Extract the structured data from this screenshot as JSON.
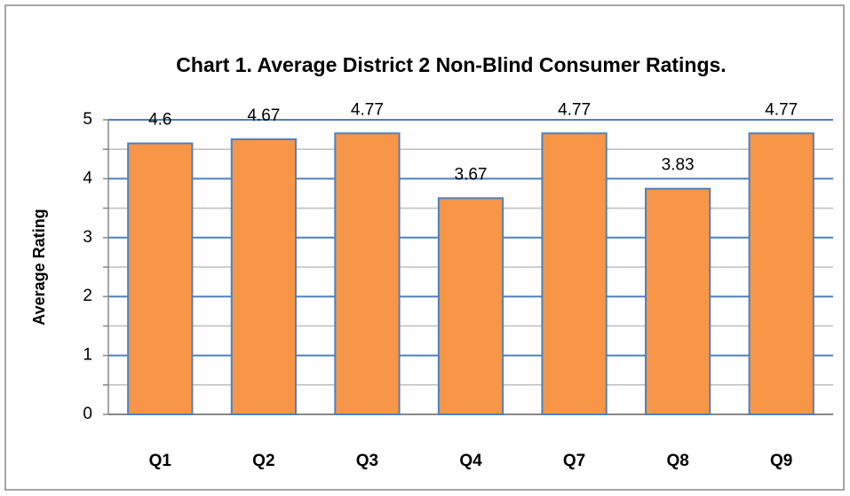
{
  "chart_data": {
    "type": "bar",
    "title": "Chart 1.  Average District 2 Non-Blind Consumer Ratings.",
    "ylabel": "Average Rating",
    "categories": [
      "Q1",
      "Q2",
      "Q3",
      "Q4",
      "Q7",
      "Q8",
      "Q9"
    ],
    "values": [
      4.6,
      4.67,
      4.77,
      3.67,
      4.77,
      3.83,
      4.77
    ],
    "color": "#f79646",
    "edgecolor": "#4f81bd",
    "ylim": [
      0,
      5
    ],
    "yticks": [
      0,
      1,
      2,
      3,
      4,
      5
    ],
    "yminorticks": [
      0.5,
      1.5,
      2.5,
      3.5,
      4.5
    ],
    "grid": true
  }
}
